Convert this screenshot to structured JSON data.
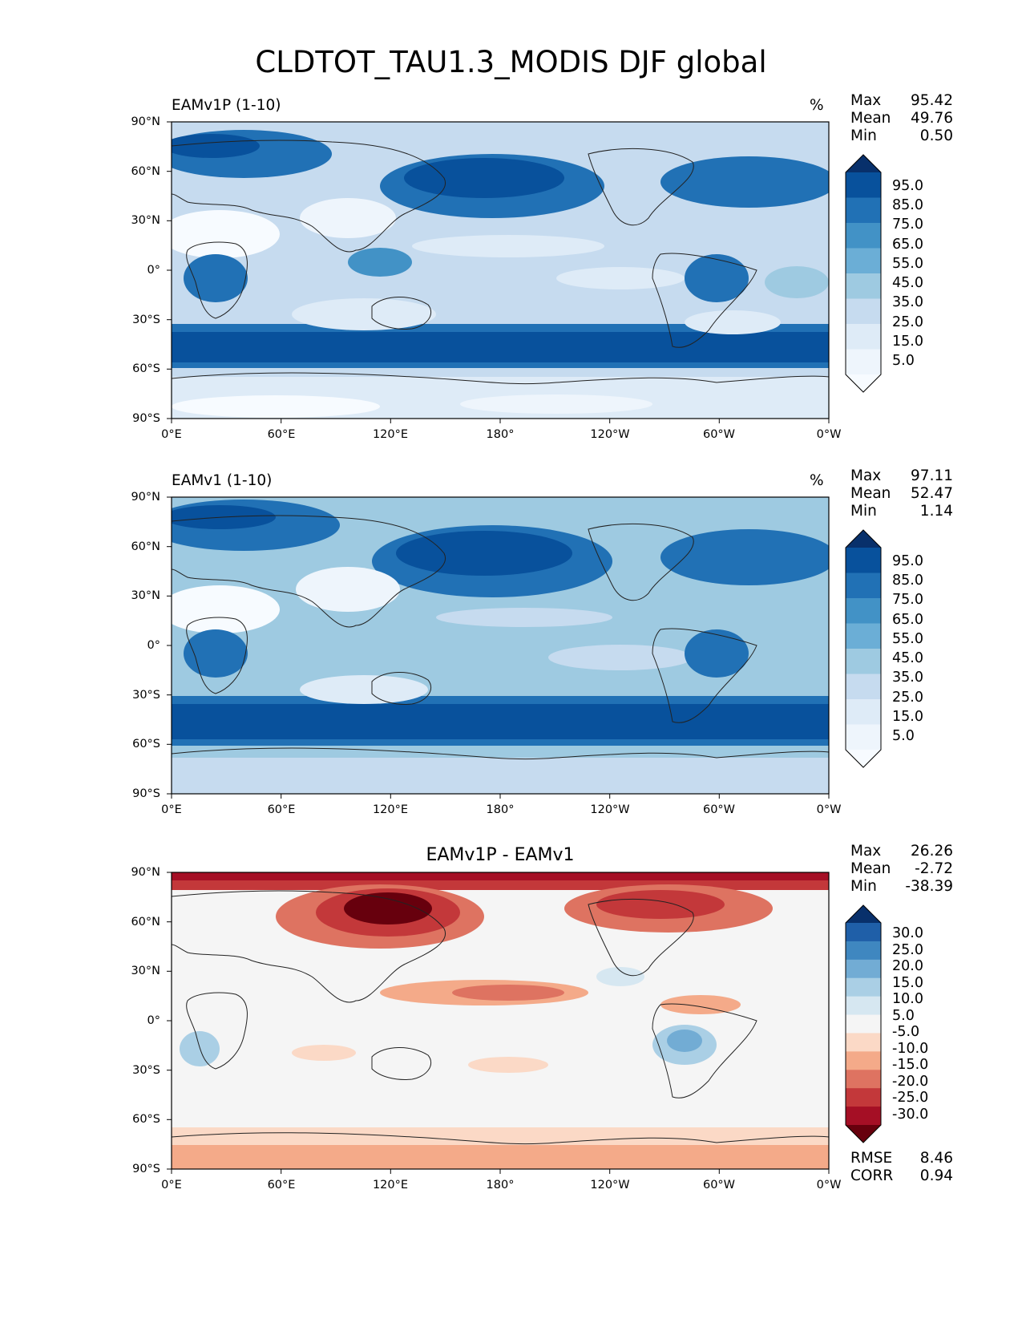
{
  "title": "CLDTOT_TAU1.3_MODIS DJF global",
  "lat_ticks": [
    "90°N",
    "60°N",
    "30°N",
    "0°",
    "30°S",
    "60°S",
    "90°S"
  ],
  "lon_ticks": [
    "0°E",
    "60°E",
    "120°E",
    "180°",
    "120°W",
    "60°W",
    "0°W"
  ],
  "panels": [
    {
      "title": "EAMv1P (1-10)",
      "units": "%",
      "stats": [
        {
          "label": "Max",
          "value": "95.42"
        },
        {
          "label": "Mean",
          "value": "49.76"
        },
        {
          "label": "Min",
          "value": "0.50"
        }
      ],
      "colorbar": {
        "labels": [
          "95.0",
          "85.0",
          "75.0",
          "65.0",
          "55.0",
          "45.0",
          "35.0",
          "25.0",
          "15.0",
          "5.0"
        ],
        "colors": [
          "#08306b",
          "#08519c",
          "#2171b5",
          "#4292c6",
          "#6baed6",
          "#9ecae1",
          "#c6dbef",
          "#deebf7",
          "#eef5fc",
          "#f7fbff"
        ]
      }
    },
    {
      "title": "EAMv1 (1-10)",
      "units": "%",
      "stats": [
        {
          "label": "Max",
          "value": "97.11"
        },
        {
          "label": "Mean",
          "value": "52.47"
        },
        {
          "label": "Min",
          "value": "1.14"
        }
      ],
      "colorbar": {
        "labels": [
          "95.0",
          "85.0",
          "75.0",
          "65.0",
          "55.0",
          "45.0",
          "35.0",
          "25.0",
          "15.0",
          "5.0"
        ],
        "colors": [
          "#08306b",
          "#08519c",
          "#2171b5",
          "#4292c6",
          "#6baed6",
          "#9ecae1",
          "#c6dbef",
          "#deebf7",
          "#eef5fc",
          "#f7fbff"
        ]
      }
    },
    {
      "title": "EAMv1P - EAMv1",
      "stats": [
        {
          "label": "Max",
          "value": "26.26"
        },
        {
          "label": "Mean",
          "value": "-2.72"
        },
        {
          "label": "Min",
          "value": "-38.39"
        }
      ],
      "colorbar": {
        "labels": [
          "30.0",
          "25.0",
          "20.0",
          "15.0",
          "10.0",
          "5.0",
          "-5.0",
          "-10.0",
          "-15.0",
          "-20.0",
          "-25.0",
          "-30.0"
        ],
        "colors": [
          "#08306b",
          "#1f5fa8",
          "#3f87c0",
          "#72acd4",
          "#aacfe5",
          "#d6e7f1",
          "#f5f5f5",
          "#fbd9c6",
          "#f4aa89",
          "#de7361",
          "#c3383a",
          "#a50f25",
          "#67000d"
        ]
      },
      "rmse": {
        "label": "RMSE",
        "value": "8.46"
      },
      "corr": {
        "label": "CORR",
        "value": "0.94"
      }
    }
  ]
}
